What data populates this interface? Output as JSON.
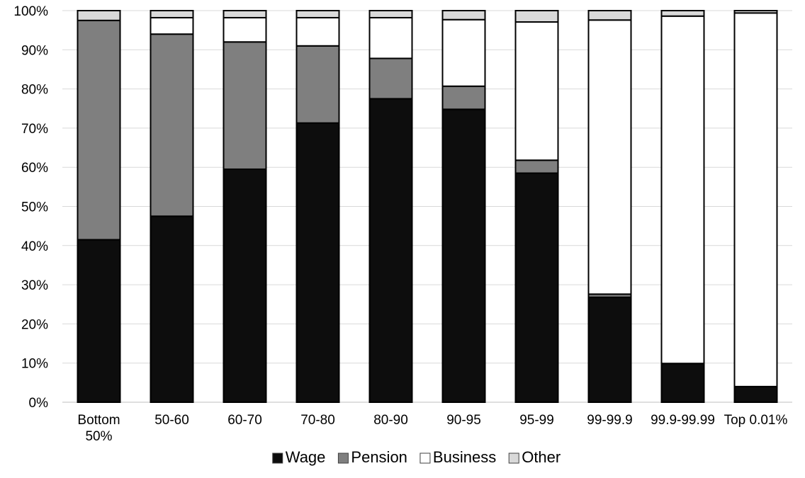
{
  "chart_data": {
    "type": "bar",
    "stacked": "percent",
    "categories": [
      "Bottom 50%",
      "50-60",
      "60-70",
      "70-80",
      "80-90",
      "90-95",
      "95-99",
      "99-99.9",
      "99.9-99.99",
      "Top 0.01%"
    ],
    "series": [
      {
        "name": "Wage",
        "color": "#0d0d0d",
        "values": [
          41.5,
          47.5,
          59.5,
          71.3,
          77.5,
          74.8,
          58.5,
          26.8,
          9.9,
          4.0
        ]
      },
      {
        "name": "Pension",
        "color": "#7f7f7f",
        "values": [
          56.0,
          46.5,
          32.5,
          19.7,
          10.3,
          5.9,
          3.3,
          0.8,
          0.0,
          0.0
        ]
      },
      {
        "name": "Business",
        "color": "#ffffff",
        "values": [
          0.0,
          4.2,
          6.2,
          7.2,
          10.4,
          17.0,
          35.3,
          70.0,
          88.7,
          95.4
        ]
      },
      {
        "name": "Other",
        "color": "#d9d9d9",
        "values": [
          2.5,
          1.8,
          1.8,
          1.8,
          1.8,
          2.3,
          2.9,
          2.4,
          1.4,
          0.6
        ]
      }
    ],
    "yticks": [
      "0%",
      "10%",
      "20%",
      "30%",
      "40%",
      "50%",
      "60%",
      "70%",
      "80%",
      "90%",
      "100%"
    ],
    "ylim": [
      0,
      100
    ],
    "grid": true,
    "legend_position": "bottom"
  }
}
